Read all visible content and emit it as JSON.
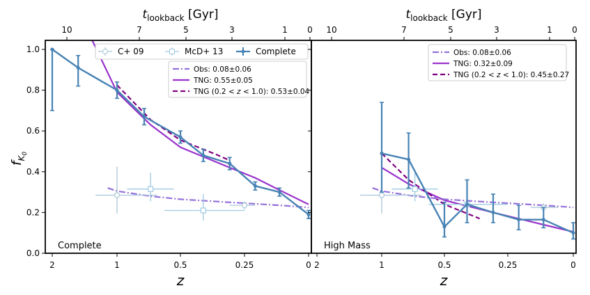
{
  "figure": {
    "ylabel_main": "f",
    "ylabel_sub": "K",
    "ylabel_subsub": "0",
    "xlabel": "z",
    "top_label_main": "t",
    "top_label_sub": "lookback",
    "top_label_unit": " [Gyr]"
  },
  "chart_data": [
    {
      "type": "line",
      "panel_label": "Complete",
      "x_axis": "reciprocal of (1+z), decreasing z to the right",
      "x_ticks": [
        {
          "z": 2,
          "label": "2"
        },
        {
          "z": 1,
          "label": "1"
        },
        {
          "z": 0.5,
          "label": "0.5"
        },
        {
          "z": 0.25,
          "label": "0.25"
        },
        {
          "z": 0,
          "label": "0"
        }
      ],
      "top_ticks": [
        {
          "t": 10,
          "label": "10"
        },
        {
          "t": 7,
          "label": "7"
        },
        {
          "t": 5,
          "label": "5"
        },
        {
          "t": 3,
          "label": "3"
        },
        {
          "t": 1,
          "label": "1"
        },
        {
          "t": 0,
          "label": "0"
        }
      ],
      "ylim": [
        0,
        1.05
      ],
      "y_ticks": [
        "0.0",
        "0.2",
        "0.4",
        "0.6",
        "0.8",
        "1.0"
      ],
      "legend_markers": [
        {
          "label": "C+ 09",
          "style": "star-errorbar",
          "color": "#a9c6d8"
        },
        {
          "label": "McD+ 13",
          "style": "square-errorbar",
          "color": "#9ecae1"
        },
        {
          "label": "Complete",
          "style": "line-errorbar",
          "color": "#4682b4"
        }
      ],
      "legend_lines": [
        {
          "label": "Obs: 0.08±0.06",
          "style": "dashdot",
          "color": "#9370db"
        },
        {
          "label": "TNG: 0.55±0.05",
          "style": "solid",
          "color": "#9932cc"
        },
        {
          "label_prefix": "TNG (0.2 < ",
          "label_var": "z",
          "label_suffix": " < 1.0): 0.53±0.04",
          "style": "dashed",
          "color": "#800080"
        }
      ],
      "series": [
        {
          "name": "Complete",
          "color": "#4682b4",
          "points": [
            {
              "z": 2.0,
              "y": 1.0,
              "err": [
                0.3,
                0.0
              ]
            },
            {
              "z": 1.5,
              "y": 0.91,
              "err": [
                0.09,
                0.06
              ]
            },
            {
              "z": 1.0,
              "y": 0.8,
              "err": [
                0.04,
                0.04
              ]
            },
            {
              "z": 0.75,
              "y": 0.67,
              "err": [
                0.04,
                0.04
              ]
            },
            {
              "z": 0.5,
              "y": 0.57,
              "err": [
                0.03,
                0.03
              ]
            },
            {
              "z": 0.4,
              "y": 0.48,
              "err": [
                0.03,
                0.03
              ]
            },
            {
              "z": 0.3,
              "y": 0.44,
              "err": [
                0.03,
                0.03
              ]
            },
            {
              "z": 0.2,
              "y": 0.33,
              "err": [
                0.02,
                0.02
              ]
            },
            {
              "z": 0.1,
              "y": 0.3,
              "err": [
                0.02,
                0.02
              ]
            },
            {
              "z": 0.0,
              "y": 0.19,
              "err": [
                0.02,
                0.02
              ]
            }
          ]
        },
        {
          "name": "C+ 09",
          "color": "#a9c6d8",
          "points": [
            {
              "z": 1.0,
              "y": 0.285,
              "err": [
                0.09,
                0.14
              ],
              "xerr": [
                0.35,
                0.25
              ]
            },
            {
              "z": 0.25,
              "y": 0.235,
              "err": [
                0.02,
                0.02
              ],
              "xerr": [
                0.05,
                0.05
              ]
            }
          ]
        },
        {
          "name": "McD+ 13",
          "color": "#9ecae1",
          "points": [
            {
              "z": 0.7,
              "y": 0.315,
              "err": [
                0.06,
                0.08
              ],
              "xerr": [
                0.16,
                0.2
              ]
            },
            {
              "z": 0.4,
              "y": 0.21,
              "err": [
                0.05,
                0.08
              ],
              "xerr": [
                0.15,
                0.2
              ]
            }
          ]
        },
        {
          "name": "TNG",
          "color": "#9932cc",
          "style": "solid",
          "points": [
            {
              "z": 1.3,
              "y": 1.05
            },
            {
              "z": 1.0,
              "y": 0.79
            },
            {
              "z": 0.7,
              "y": 0.63
            },
            {
              "z": 0.5,
              "y": 0.52
            },
            {
              "z": 0.3,
              "y": 0.42
            },
            {
              "z": 0.2,
              "y": 0.37
            },
            {
              "z": 0.1,
              "y": 0.31
            },
            {
              "z": 0.0,
              "y": 0.24
            }
          ]
        },
        {
          "name": "TNG (0.2<z<1.0)",
          "color": "#800080",
          "style": "dashed",
          "points": [
            {
              "z": 1.0,
              "y": 0.825
            },
            {
              "z": 0.7,
              "y": 0.655
            },
            {
              "z": 0.5,
              "y": 0.555
            },
            {
              "z": 0.35,
              "y": 0.485
            },
            {
              "z": 0.3,
              "y": 0.455
            }
          ]
        },
        {
          "name": "Obs",
          "color": "#9370db",
          "style": "dashdot",
          "points": [
            {
              "z": 1.1,
              "y": 0.32
            },
            {
              "z": 1.0,
              "y": 0.305
            },
            {
              "z": 0.7,
              "y": 0.28
            },
            {
              "z": 0.5,
              "y": 0.265
            },
            {
              "z": 0.3,
              "y": 0.25
            },
            {
              "z": 0.1,
              "y": 0.235
            },
            {
              "z": 0.0,
              "y": 0.225
            }
          ]
        }
      ]
    },
    {
      "type": "line",
      "panel_label": "High Mass",
      "x_ticks": [
        {
          "z": 2,
          "label": "2"
        },
        {
          "z": 1,
          "label": "1"
        },
        {
          "z": 0.5,
          "label": "0.5"
        },
        {
          "z": 0.25,
          "label": "0.25"
        },
        {
          "z": 0,
          "label": "0"
        }
      ],
      "top_ticks": [
        {
          "t": 10,
          "label": "10"
        },
        {
          "t": 7,
          "label": "7"
        },
        {
          "t": 5,
          "label": "5"
        },
        {
          "t": 3,
          "label": "3"
        },
        {
          "t": 1,
          "label": "1"
        },
        {
          "t": 0,
          "label": "0"
        }
      ],
      "ylim": [
        0,
        1.05
      ],
      "legend_lines": [
        {
          "label": "Obs: 0.08±0.06",
          "style": "dashdot",
          "color": "#9370db"
        },
        {
          "label": "TNG: 0.32±0.09",
          "style": "solid",
          "color": "#9932cc"
        },
        {
          "label_prefix": "TNG (0.2 < ",
          "label_var": "z",
          "label_suffix": " < 1.0): 0.45±0.27",
          "style": "dashed",
          "color": "#800080"
        }
      ],
      "series": [
        {
          "name": "High Mass",
          "color": "#4682b4",
          "points": [
            {
              "z": 1.0,
              "y": 0.49,
              "err": [
                0.19,
                0.25
              ]
            },
            {
              "z": 0.75,
              "y": 0.46,
              "err": [
                0.14,
                0.13
              ]
            },
            {
              "z": 0.5,
              "y": 0.13,
              "err": [
                0.05,
                0.12
              ]
            },
            {
              "z": 0.4,
              "y": 0.24,
              "err": [
                0.09,
                0.12
              ]
            },
            {
              "z": 0.3,
              "y": 0.2,
              "err": [
                0.05,
                0.09
              ]
            },
            {
              "z": 0.2,
              "y": 0.165,
              "err": [
                0.05,
                0.07
              ]
            },
            {
              "z": 0.1,
              "y": 0.165,
              "err": [
                0.04,
                0.06
              ]
            },
            {
              "z": 0.0,
              "y": 0.1,
              "err": [
                0.03,
                0.05
              ]
            }
          ]
        },
        {
          "name": "C+ 09",
          "color": "#a9c6d8",
          "points": [
            {
              "z": 1.0,
              "y": 0.285,
              "err": [
                0.09,
                0.14
              ],
              "xerr": [
                0.35,
                0.25
              ]
            },
            {
              "z": 0.1,
              "y": 0.225,
              "err": [
                0.02,
                0.02
              ],
              "xerr": [
                0.05,
                0.05
              ]
            }
          ]
        },
        {
          "name": "McD+ 13",
          "color": "#9ecae1",
          "points": [
            {
              "z": 0.7,
              "y": 0.315,
              "err": [
                0.06,
                0.08
              ],
              "xerr": [
                0.16,
                0.2
              ]
            },
            {
              "z": 0.4,
              "y": 0.24,
              "err": [
                0.05,
                0.06
              ],
              "xerr": [
                0.15,
                0.2
              ]
            }
          ]
        },
        {
          "name": "TNG",
          "color": "#9932cc",
          "style": "solid",
          "points": [
            {
              "z": 1.0,
              "y": 0.42
            },
            {
              "z": 0.75,
              "y": 0.34
            },
            {
              "z": 0.5,
              "y": 0.26
            },
            {
              "z": 0.3,
              "y": 0.2
            },
            {
              "z": 0.1,
              "y": 0.14
            },
            {
              "z": 0.0,
              "y": 0.105
            }
          ]
        },
        {
          "name": "TNG (0.2<z<1.0)",
          "color": "#800080",
          "style": "dashed",
          "points": [
            {
              "z": 1.0,
              "y": 0.49
            },
            {
              "z": 0.75,
              "y": 0.36
            },
            {
              "z": 0.5,
              "y": 0.24
            },
            {
              "z": 0.35,
              "y": 0.17
            }
          ]
        },
        {
          "name": "Obs",
          "color": "#9370db",
          "style": "dashdot",
          "points": [
            {
              "z": 1.1,
              "y": 0.32
            },
            {
              "z": 1.0,
              "y": 0.305
            },
            {
              "z": 0.7,
              "y": 0.28
            },
            {
              "z": 0.5,
              "y": 0.265
            },
            {
              "z": 0.3,
              "y": 0.25
            },
            {
              "z": 0.1,
              "y": 0.235
            },
            {
              "z": 0.0,
              "y": 0.225
            }
          ]
        }
      ]
    }
  ]
}
